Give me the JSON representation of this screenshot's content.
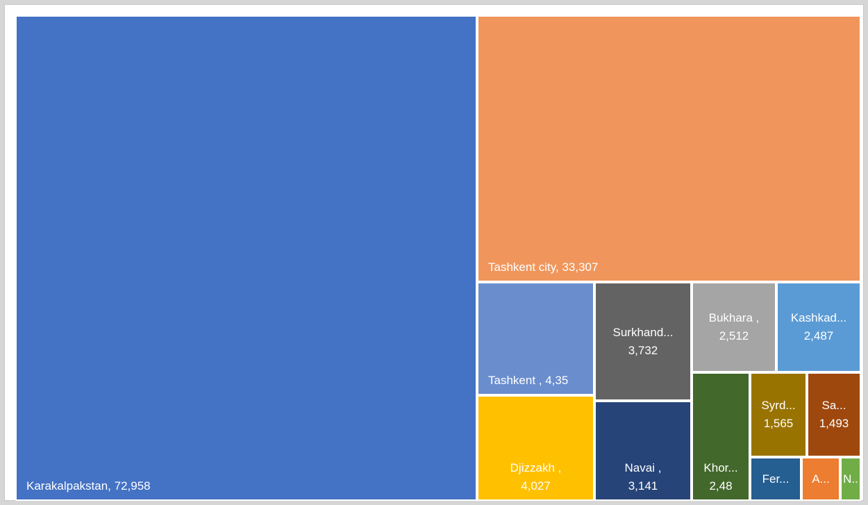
{
  "chart_data": {
    "type": "treemap",
    "title": "",
    "items": [
      {
        "name": "Karakalpakstan",
        "value": 72958,
        "label": "Karakalpakstan, 72,958",
        "color": "#4472c4"
      },
      {
        "name": "Tashkent city",
        "value": 33307,
        "label": "Tashkent city, 33,307",
        "color": "#f0965c"
      },
      {
        "name": "Tashkent",
        "value": 4.35,
        "label": "Tashkent , 4,35",
        "color": "#6a8dcd"
      },
      {
        "name": "Djizzakh",
        "value": 4027,
        "label": "Djizzakh ,",
        "label2": "4,027",
        "color": "#ffc000"
      },
      {
        "name": "Surkhandarya",
        "value": 3732,
        "label": "Surkhand...",
        "label2": "3,732",
        "color": "#636363"
      },
      {
        "name": "Navai",
        "value": 3141,
        "label": "Navai ,",
        "label2": "3,141",
        "color": "#264478"
      },
      {
        "name": "Bukhara",
        "value": 2512,
        "label": "Bukhara ,",
        "label2": "2,512",
        "color": "#a5a5a5"
      },
      {
        "name": "Kashkadarya",
        "value": 2487,
        "label": "Kashkad...",
        "label2": "2,487",
        "color": "#5b9bd5"
      },
      {
        "name": "Khorezm",
        "value": 2.48,
        "label": "Khor...",
        "label2": "2,48",
        "color": "#43682b"
      },
      {
        "name": "Syrdarya",
        "value": 1565,
        "label": "Syrd...",
        "label2": "1,565",
        "color": "#997300"
      },
      {
        "name": "Samarkand",
        "value": 1493,
        "label": "Sa...",
        "label2": "1,493",
        "color": "#9e480e"
      },
      {
        "name": "Fergana",
        "value": null,
        "label": "Fer...",
        "color": "#255e91"
      },
      {
        "name": "Andijan",
        "value": null,
        "label": "A...",
        "color": "#ed7d31"
      },
      {
        "name": "Namangan",
        "value": null,
        "label": "N..",
        "color": "#70ad47"
      }
    ]
  }
}
